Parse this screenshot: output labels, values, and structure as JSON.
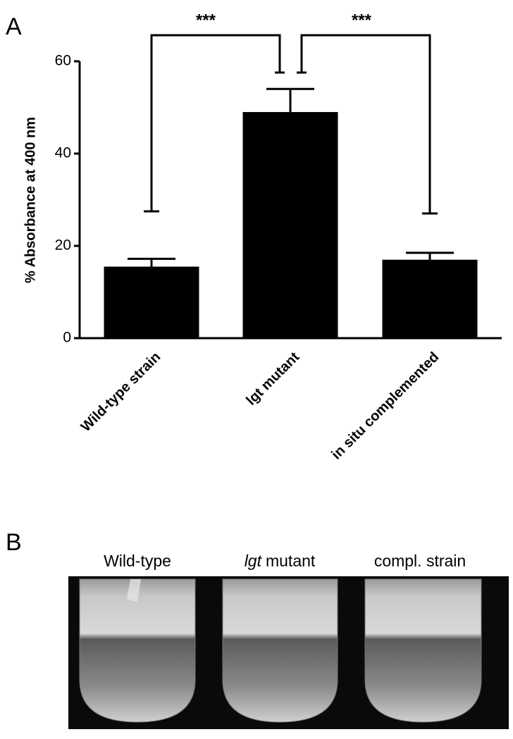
{
  "panel_labels": [
    "A",
    "B"
  ],
  "chart_data": {
    "type": "bar",
    "y_label": "% Absorbance at 400 nm",
    "categories": [
      "Wild-type strain",
      "lgt mutant",
      "in situ complemented"
    ],
    "values": [
      15.5,
      49,
      17
    ],
    "errors": [
      1.7,
      5,
      1.5
    ],
    "color": "#000000",
    "ylim": [
      0,
      60
    ],
    "yticks": [
      0,
      20,
      40,
      60
    ],
    "annotations": [
      "***",
      "***"
    ]
  },
  "photo": {
    "labels": [
      "Wild-type",
      {
        "italic": "lgt",
        "rest": "mutant"
      },
      "compl. strain"
    ]
  }
}
